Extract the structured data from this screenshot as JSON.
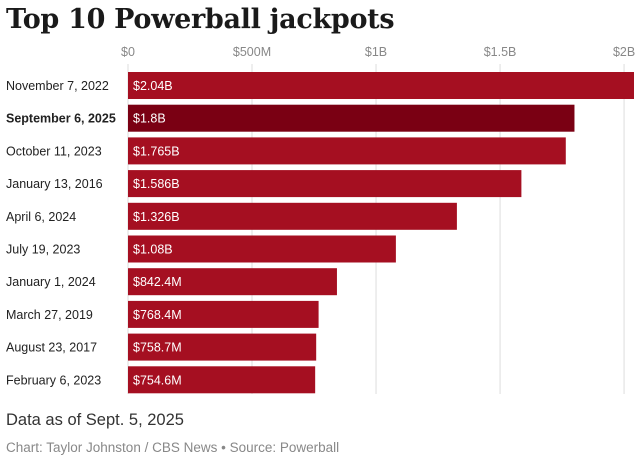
{
  "title": "Top 10 Powerball jackpots",
  "note": "Data as of Sept. 5, 2025",
  "credit": "Chart: Taylor Johnston / CBS News • Source: Powerball",
  "colors": {
    "bar": "#a50f21",
    "highlight": "#7a0013",
    "grid": "#dddddd",
    "axis_text": "#888888"
  },
  "chart_data": {
    "type": "bar",
    "orientation": "horizontal",
    "title": "Top 10 Powerball jackpots",
    "xlim": [
      0,
      2040000000
    ],
    "ticks": [
      {
        "value": 0,
        "label": "$0"
      },
      {
        "value": 500000000,
        "label": "$500M"
      },
      {
        "value": 1000000000,
        "label": "$1B"
      },
      {
        "value": 1500000000,
        "label": "$1.5B"
      },
      {
        "value": 2000000000,
        "label": "$2B"
      }
    ],
    "grid": true,
    "highlight_category": "September 6, 2025",
    "categories": [
      "November 7, 2022",
      "September 6, 2025",
      "October 11, 2023",
      "January 13, 2016",
      "April 6, 2024",
      "July 19, 2023",
      "January 1, 2024",
      "March 27, 2019",
      "August 23, 2017",
      "February 6, 2023"
    ],
    "values": [
      2040000000,
      1800000000,
      1765000000,
      1586000000,
      1326000000,
      1080000000,
      842400000,
      768400000,
      758700000,
      754600000
    ],
    "value_labels": [
      "$2.04B",
      "$1.8B",
      "$1.765B",
      "$1.586B",
      "$1.326B",
      "$1.08B",
      "$842.4M",
      "$768.4M",
      "$758.7M",
      "$754.6M"
    ]
  }
}
